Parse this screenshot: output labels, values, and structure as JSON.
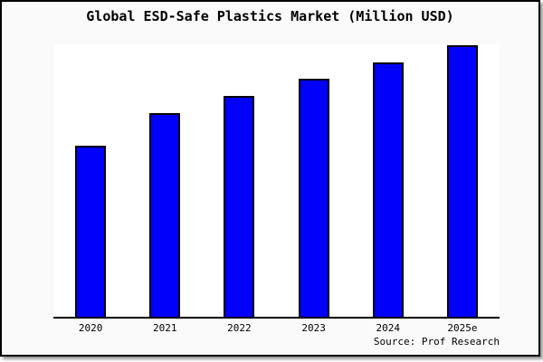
{
  "window": {
    "background_color": "#fafafa",
    "plot_background_color": "#ffffff",
    "border_color": "#000000"
  },
  "chart_data": {
    "type": "bar",
    "title": "Global ESD-Safe Plastics Market (Million USD)",
    "categories": [
      "2020",
      "2021",
      "2022",
      "2023",
      "2024",
      "2025e"
    ],
    "values": [
      63,
      75,
      81.3,
      87.7,
      93.7,
      100
    ],
    "values_note": "no y-axis tick labels shown; values estimated as % of tallest (2025e) bar",
    "xlabel": "",
    "ylabel": "",
    "ylim": [
      0,
      100
    ],
    "grid": false,
    "legend": false,
    "bar_color": "#0000fb",
    "bar_border_color": "#000000",
    "source_label": "Source: Prof Research"
  }
}
